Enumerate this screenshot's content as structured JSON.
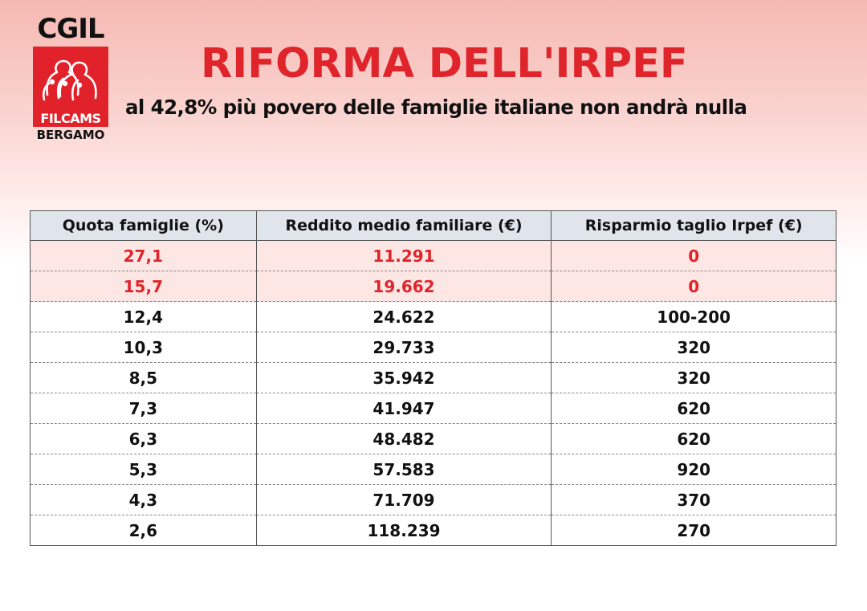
{
  "logo": {
    "top_text": "CGIL",
    "band_text": "FILCAMS",
    "bottom_text": "BERGAMO",
    "icon": "cgil-people-logo-icon",
    "brand_color": "#e2222a"
  },
  "header": {
    "title": "RIFORMA DELL'IRPEF",
    "subtitle": "al 42,8% più povero delle famiglie italiane non andrà nulla",
    "title_color": "#e0242b"
  },
  "table": {
    "columns": [
      "Quota famiglie (%)",
      "Reddito medio familiare (€)",
      "Risparmio taglio Irpef (€)"
    ],
    "header_bg": "#dfe5eb",
    "highlight_color": "#e0242b",
    "rows": [
      {
        "quota": "27,1",
        "income": "11.291",
        "saving": "0",
        "highlight": true
      },
      {
        "quota": "15,7",
        "income": "19.662",
        "saving": "0",
        "highlight": true
      },
      {
        "quota": "12,4",
        "income": "24.622",
        "saving": "100-200",
        "highlight": false
      },
      {
        "quota": "10,3",
        "income": "29.733",
        "saving": "320",
        "highlight": false
      },
      {
        "quota": "8,5",
        "income": "35.942",
        "saving": "320",
        "highlight": false
      },
      {
        "quota": "7,3",
        "income": "41.947",
        "saving": "620",
        "highlight": false
      },
      {
        "quota": "6,3",
        "income": "48.482",
        "saving": "620",
        "highlight": false
      },
      {
        "quota": "5,3",
        "income": "57.583",
        "saving": "920",
        "highlight": false
      },
      {
        "quota": "4,3",
        "income": "71.709",
        "saving": "370",
        "highlight": false
      },
      {
        "quota": "2,6",
        "income": "118.239",
        "saving": "270",
        "highlight": false
      }
    ]
  }
}
